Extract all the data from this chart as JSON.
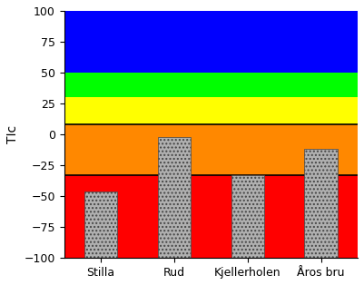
{
  "categories": [
    "Stilla",
    "Rud",
    "Kjellerholen",
    "Åros bru"
  ],
  "values": [
    -46,
    -2,
    -33,
    -12
  ],
  "bar_color": "#b0b0b0",
  "bar_hatch": "....",
  "ylabel": "TIc",
  "ylim": [
    -100,
    100
  ],
  "yticks": [
    -100,
    -75,
    -50,
    -25,
    0,
    25,
    50,
    75,
    100
  ],
  "background_color": "#ffffff",
  "bands": [
    {
      "ymin": 50,
      "ymax": 100,
      "color": "#0000ff"
    },
    {
      "ymin": 30,
      "ymax": 50,
      "color": "#00ff00"
    },
    {
      "ymin": 8,
      "ymax": 30,
      "color": "#ffff00"
    },
    {
      "ymin": -33,
      "ymax": 8,
      "color": "#ff8800"
    },
    {
      "ymin": -100,
      "ymax": -33,
      "color": "#ff0000"
    }
  ],
  "band_edge_color": "#000000",
  "band_linewidth": 1.2,
  "bar_width": 0.45,
  "bar_bottom": -100,
  "figsize": [
    4.01,
    3.14
  ],
  "dpi": 100
}
